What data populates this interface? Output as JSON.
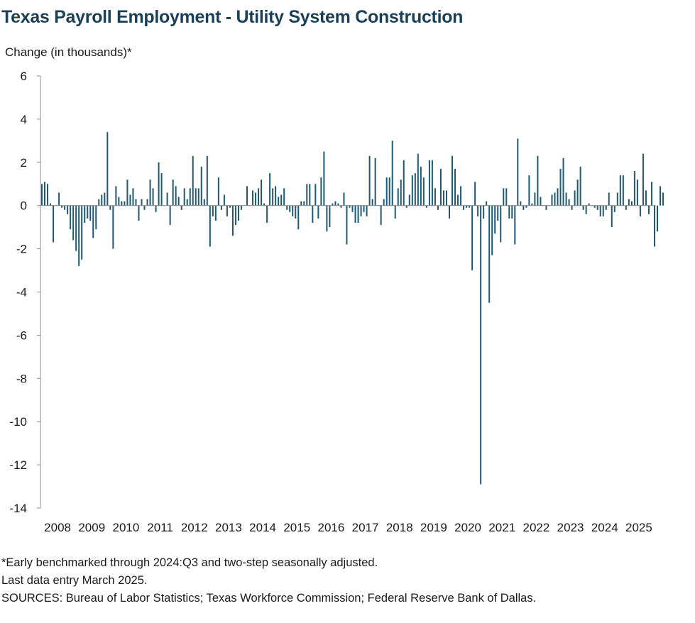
{
  "title": "Texas Payroll Employment - Utility System Construction",
  "footnotes": [
    "*Early benchmarked through 2024:Q3 and two-step seasonally adjusted.",
    "Last data entry March 2025.",
    "SOURCES: Bureau of Labor Statistics; Texas Workforce Commission; Federal Reserve Bank of Dallas."
  ],
  "colors": {
    "bar": "#1f5a73",
    "title": "#1b3f55",
    "axis": "#8c8c8c"
  },
  "chart_data": {
    "type": "bar",
    "ylabel": "Change (in thousands)*",
    "ylim": [
      -14,
      6
    ],
    "yticks": [
      6,
      4,
      2,
      0,
      -2,
      -4,
      -6,
      -8,
      -10,
      -12,
      -14
    ],
    "x_tick_labels": [
      "2008",
      "2009",
      "2010",
      "2011",
      "2012",
      "2013",
      "2014",
      "2015",
      "2016",
      "2017",
      "2018",
      "2019",
      "2020",
      "2021",
      "2022",
      "2023",
      "2024",
      "2025"
    ],
    "start": "2008-01",
    "end": "2025-03",
    "grid": false,
    "legend": "none",
    "series": [
      {
        "values": [
          1.0,
          1.1,
          1.0,
          0.1,
          -1.7,
          0.0,
          0.6,
          -0.1,
          -0.2,
          -0.4,
          -1.1,
          -1.6,
          -2.1,
          -2.8,
          -2.5,
          -0.8,
          -0.6,
          -0.7,
          -1.5,
          -1.1,
          0.3,
          0.5,
          0.6,
          3.4,
          -0.2,
          -2.0,
          0.9,
          0.4,
          0.2,
          0.2,
          1.2,
          0.5,
          0.8,
          0.3,
          -0.7,
          0.3,
          -0.2,
          0.3,
          1.2,
          0.8,
          -0.3,
          2.0,
          1.5,
          0.0,
          0.6,
          -0.9,
          1.2,
          0.9,
          0.4,
          -0.2,
          0.8,
          0.3,
          0.8,
          2.3,
          0.8,
          0.8,
          1.8,
          0.3,
          2.3,
          -1.9,
          -0.5,
          -0.7,
          1.3,
          -0.2,
          0.5,
          -0.5,
          -0.1,
          -1.4,
          -0.9,
          -0.7,
          -0.2,
          0.0,
          0.9,
          0.0,
          0.7,
          0.6,
          0.8,
          1.2,
          0.1,
          -0.8,
          1.5,
          0.8,
          0.9,
          0.4,
          0.5,
          0.8,
          -0.2,
          -0.3,
          -0.5,
          -0.6,
          -1.1,
          0.2,
          0.2,
          1.0,
          1.0,
          -0.8,
          1.0,
          -0.6,
          1.3,
          2.5,
          -1.2,
          -1.0,
          0.1,
          0.2,
          0.1,
          -0.1,
          0.6,
          -1.8,
          -0.1,
          -0.3,
          -0.8,
          -0.8,
          -0.5,
          -0.3,
          -0.5,
          2.3,
          0.3,
          2.2,
          0.0,
          -0.9,
          0.3,
          1.3,
          1.3,
          3.0,
          -0.6,
          0.8,
          1.2,
          2.1,
          -0.1,
          0.5,
          1.4,
          1.5,
          2.4,
          1.8,
          1.3,
          -0.1,
          2.1,
          2.1,
          0.8,
          -0.2,
          1.7,
          0.7,
          0.7,
          -0.6,
          2.3,
          1.7,
          0.5,
          0.9,
          -0.2,
          -0.1,
          -0.1,
          -3.0,
          1.1,
          -0.5,
          -12.9,
          -0.6,
          0.2,
          -4.5,
          -2.3,
          -1.3,
          -0.7,
          -1.7,
          0.8,
          0.8,
          -0.6,
          -0.6,
          -1.8,
          3.1,
          0.2,
          -0.2,
          -0.1,
          1.4,
          0.1,
          0.6,
          2.3,
          0.4,
          0.0,
          -0.2,
          0.0,
          0.5,
          0.6,
          0.8,
          1.7,
          2.2,
          0.6,
          0.3,
          -0.2,
          0.7,
          1.2,
          1.8,
          -0.2,
          -0.4,
          0.1,
          0.0,
          -0.1,
          -0.2,
          -0.5,
          -0.5,
          -0.2,
          0.6,
          -1.0,
          -0.3,
          0.6,
          1.4,
          1.4,
          -0.2,
          0.3,
          0.2,
          1.6,
          1.2,
          -0.5,
          2.4,
          0.7,
          -0.4,
          1.1,
          -1.9,
          -1.2,
          0.9,
          0.6
        ]
      }
    ]
  }
}
